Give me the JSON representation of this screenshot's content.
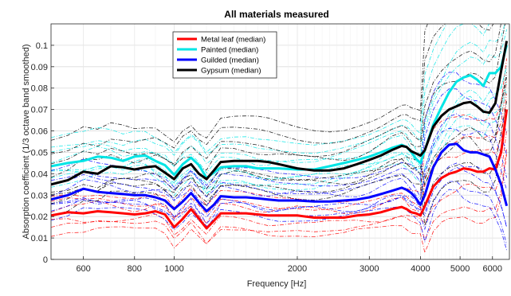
{
  "chart_data": {
    "type": "line",
    "title": "All materials measured",
    "xlabel": "Frequency [Hz]",
    "ylabel": "Absorption coefficient (1/3 octave band smoothed)",
    "x_scale": "log",
    "xlim": [
      500,
      6600
    ],
    "ylim": [
      0,
      0.11
    ],
    "xticks": [
      600,
      800,
      1000,
      2000,
      3000,
      4000,
      5000,
      6000
    ],
    "xtick_labels": [
      "600",
      "800",
      "1000",
      "2000",
      "3000",
      "4000",
      "5000",
      "6000"
    ],
    "yticks": [
      0,
      0.01,
      0.02,
      0.03,
      0.04,
      0.05,
      0.06,
      0.07,
      0.08,
      0.09,
      0.1
    ],
    "ytick_labels": [
      "0",
      "0.01",
      "0.02",
      "0.03",
      "0.04",
      "0.05",
      "0.06",
      "0.07",
      "0.08",
      "0.09",
      "0.1"
    ],
    "grid": true,
    "legend_position": "top-left",
    "x": [
      500,
      550,
      600,
      650,
      700,
      750,
      800,
      850,
      900,
      950,
      1000,
      1050,
      1100,
      1150,
      1200,
      1250,
      1300,
      1400,
      1500,
      1600,
      1700,
      1800,
      2000,
      2200,
      2400,
      2600,
      2800,
      3000,
      3200,
      3400,
      3600,
      3700,
      3800,
      3900,
      4000,
      4100,
      4300,
      4500,
      4700,
      4900,
      5100,
      5300,
      5500,
      5700,
      5900,
      6100,
      6300,
      6500
    ],
    "series": [
      {
        "name": "Metal leaf (median)",
        "color": "#ff0000",
        "values": [
          0.0205,
          0.022,
          0.0215,
          0.0225,
          0.022,
          0.0215,
          0.021,
          0.0215,
          0.0225,
          0.021,
          0.015,
          0.019,
          0.0235,
          0.019,
          0.0145,
          0.018,
          0.0215,
          0.0215,
          0.0215,
          0.021,
          0.0205,
          0.0205,
          0.0205,
          0.0195,
          0.0195,
          0.0195,
          0.0205,
          0.021,
          0.022,
          0.0235,
          0.0245,
          0.0235,
          0.022,
          0.0215,
          0.0205,
          0.025,
          0.034,
          0.038,
          0.04,
          0.041,
          0.0425,
          0.042,
          0.041,
          0.041,
          0.0425,
          0.042,
          0.05,
          0.07
        ]
      },
      {
        "name": "Painted (median)",
        "color": "#00e5e5",
        "values": [
          0.0435,
          0.045,
          0.046,
          0.048,
          0.0475,
          0.046,
          0.048,
          0.0485,
          0.046,
          0.044,
          0.0395,
          0.0445,
          0.0475,
          0.044,
          0.038,
          0.0405,
          0.043,
          0.0435,
          0.0435,
          0.0425,
          0.0425,
          0.0425,
          0.042,
          0.042,
          0.0435,
          0.045,
          0.0465,
          0.048,
          0.05,
          0.052,
          0.0535,
          0.0525,
          0.05,
          0.047,
          0.045,
          0.051,
          0.063,
          0.071,
          0.078,
          0.083,
          0.085,
          0.086,
          0.084,
          0.081,
          0.087,
          0.087,
          0.09,
          0.1
        ]
      },
      {
        "name": "Guilded (median)",
        "color": "#0000ff",
        "values": [
          0.028,
          0.03,
          0.033,
          0.0315,
          0.031,
          0.0305,
          0.03,
          0.03,
          0.029,
          0.0275,
          0.0235,
          0.027,
          0.031,
          0.0265,
          0.0225,
          0.0255,
          0.0295,
          0.029,
          0.029,
          0.0285,
          0.028,
          0.0275,
          0.0275,
          0.027,
          0.027,
          0.0275,
          0.028,
          0.029,
          0.0305,
          0.032,
          0.0335,
          0.0325,
          0.031,
          0.0285,
          0.0255,
          0.03,
          0.043,
          0.05,
          0.0535,
          0.054,
          0.051,
          0.05,
          0.05,
          0.049,
          0.048,
          0.042,
          0.035,
          0.025
        ]
      },
      {
        "name": "Gypsum (median)",
        "color": "#000000",
        "values": [
          0.035,
          0.037,
          0.041,
          0.04,
          0.0435,
          0.043,
          0.042,
          0.043,
          0.0435,
          0.0405,
          0.0375,
          0.0425,
          0.0445,
          0.04,
          0.0375,
          0.0415,
          0.0455,
          0.046,
          0.046,
          0.046,
          0.0455,
          0.0445,
          0.0425,
          0.0415,
          0.0415,
          0.0425,
          0.0445,
          0.0465,
          0.0485,
          0.051,
          0.053,
          0.0525,
          0.0505,
          0.0495,
          0.0485,
          0.051,
          0.062,
          0.067,
          0.07,
          0.0715,
          0.073,
          0.0735,
          0.0715,
          0.069,
          0.0685,
          0.073,
          0.088,
          0.102
        ]
      }
    ]
  }
}
